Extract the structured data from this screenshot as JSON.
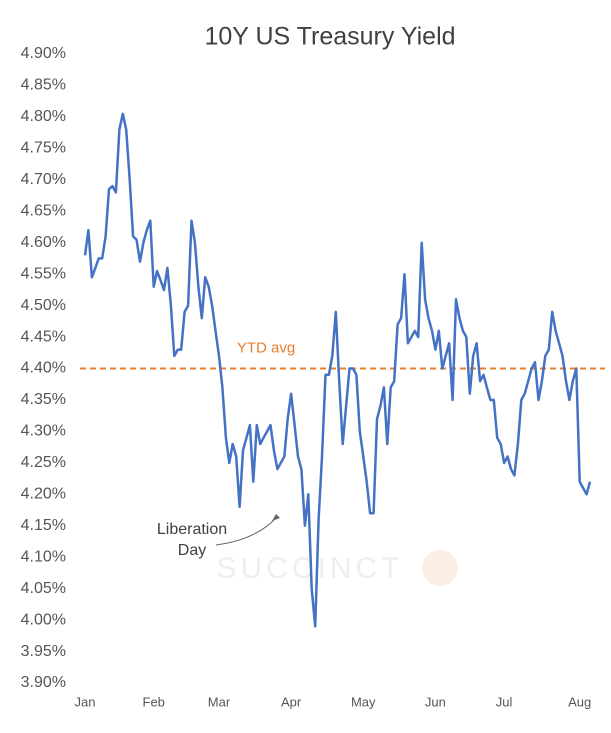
{
  "chart_data": {
    "type": "line",
    "title": "10Y US Treasury Yield",
    "categories": [
      "Jan",
      null,
      null,
      null,
      null,
      null,
      null,
      null,
      null,
      null,
      null,
      null,
      null,
      null,
      null,
      null,
      null,
      null,
      null,
      null,
      "Feb",
      null,
      null,
      null,
      null,
      null,
      null,
      null,
      null,
      null,
      null,
      null,
      null,
      null,
      null,
      null,
      null,
      null,
      null,
      "Mar",
      null,
      null,
      null,
      null,
      null,
      null,
      null,
      null,
      null,
      null,
      null,
      null,
      null,
      null,
      null,
      null,
      null,
      null,
      null,
      null,
      "Apr",
      null,
      null,
      null,
      null,
      null,
      null,
      null,
      null,
      null,
      null,
      null,
      null,
      null,
      null,
      null,
      null,
      null,
      null,
      null,
      null,
      "May",
      null,
      null,
      null,
      null,
      null,
      null,
      null,
      null,
      null,
      null,
      null,
      null,
      null,
      null,
      null,
      null,
      null,
      null,
      null,
      null,
      "Jun",
      null,
      null,
      null,
      null,
      null,
      null,
      null,
      null,
      null,
      null,
      null,
      null,
      null,
      null,
      null,
      null,
      null,
      null,
      null,
      "Jul",
      null,
      null,
      null,
      null,
      null,
      null,
      null,
      null,
      null,
      null,
      null,
      null,
      null,
      null,
      null,
      null,
      null,
      null,
      null,
      null,
      null,
      "Aug",
      null,
      null,
      null
    ],
    "series": [
      {
        "name": "10Y US Treasury Yield",
        "color": "#4472c4",
        "values": [
          4.58,
          4.62,
          4.545,
          4.56,
          4.575,
          4.575,
          4.61,
          4.685,
          4.69,
          4.68,
          4.78,
          4.805,
          4.78,
          4.7,
          4.61,
          4.605,
          4.57,
          4.6,
          4.62,
          4.635,
          4.53,
          4.555,
          4.54,
          4.525,
          4.56,
          4.5,
          4.42,
          4.43,
          4.43,
          4.49,
          4.5,
          4.635,
          4.6,
          4.53,
          4.48,
          4.545,
          4.53,
          4.5,
          4.46,
          4.42,
          4.37,
          4.29,
          4.25,
          4.28,
          4.26,
          4.18,
          4.27,
          4.29,
          4.31,
          4.22,
          4.31,
          4.28,
          4.29,
          4.3,
          4.31,
          4.27,
          4.24,
          4.25,
          4.26,
          4.32,
          4.36,
          4.31,
          4.26,
          4.24,
          4.15,
          4.2,
          4.05,
          3.99,
          4.16,
          4.26,
          4.39,
          4.39,
          4.42,
          4.49,
          4.38,
          4.28,
          4.34,
          4.4,
          4.4,
          4.39,
          4.3,
          4.26,
          4.22,
          4.17,
          4.17,
          4.32,
          4.34,
          4.37,
          4.28,
          4.37,
          4.38,
          4.47,
          4.48,
          4.55,
          4.44,
          4.45,
          4.46,
          4.45,
          4.6,
          4.51,
          4.48,
          4.46,
          4.43,
          4.46,
          4.4,
          4.42,
          4.44,
          4.35,
          4.51,
          4.48,
          4.46,
          4.45,
          4.36,
          4.42,
          4.44,
          4.38,
          4.39,
          4.37,
          4.35,
          4.35,
          4.29,
          4.28,
          4.25,
          4.26,
          4.24,
          4.23,
          4.28,
          4.35,
          4.36,
          4.38,
          4.4,
          4.41,
          4.35,
          4.38,
          4.42,
          4.43,
          4.49,
          4.46,
          4.44,
          4.42,
          4.38,
          4.35,
          4.38,
          4.4,
          4.22,
          4.21,
          4.2,
          4.22
        ]
      }
    ],
    "ylim": [
      3.9,
      4.9
    ],
    "yticks": [
      {
        "value": 3.9,
        "label": "3.90%"
      },
      {
        "value": 3.95,
        "label": "3.95%"
      },
      {
        "value": 4.0,
        "label": "4.00%"
      },
      {
        "value": 4.05,
        "label": "4.05%"
      },
      {
        "value": 4.1,
        "label": "4.10%"
      },
      {
        "value": 4.15,
        "label": "4.15%"
      },
      {
        "value": 4.2,
        "label": "4.20%"
      },
      {
        "value": 4.25,
        "label": "4.25%"
      },
      {
        "value": 4.3,
        "label": "4.30%"
      },
      {
        "value": 4.35,
        "label": "4.35%"
      },
      {
        "value": 4.4,
        "label": "4.40%"
      },
      {
        "value": 4.45,
        "label": "4.45%"
      },
      {
        "value": 4.5,
        "label": "4.50%"
      },
      {
        "value": 4.55,
        "label": "4.55%"
      },
      {
        "value": 4.6,
        "label": "4.60%"
      },
      {
        "value": 4.65,
        "label": "4.65%"
      },
      {
        "value": 4.7,
        "label": "4.70%"
      },
      {
        "value": 4.75,
        "label": "4.75%"
      },
      {
        "value": 4.8,
        "label": "4.80%"
      },
      {
        "value": 4.85,
        "label": "4.85%"
      },
      {
        "value": 4.9,
        "label": "4.90%"
      }
    ],
    "reference_line": {
      "value": 4.4,
      "label": "YTD avg",
      "color": "#e87d2e"
    },
    "annotation": {
      "line1": "Liberation",
      "line2": "Day"
    },
    "watermark": "SUCCINCT",
    "grid": false
  }
}
